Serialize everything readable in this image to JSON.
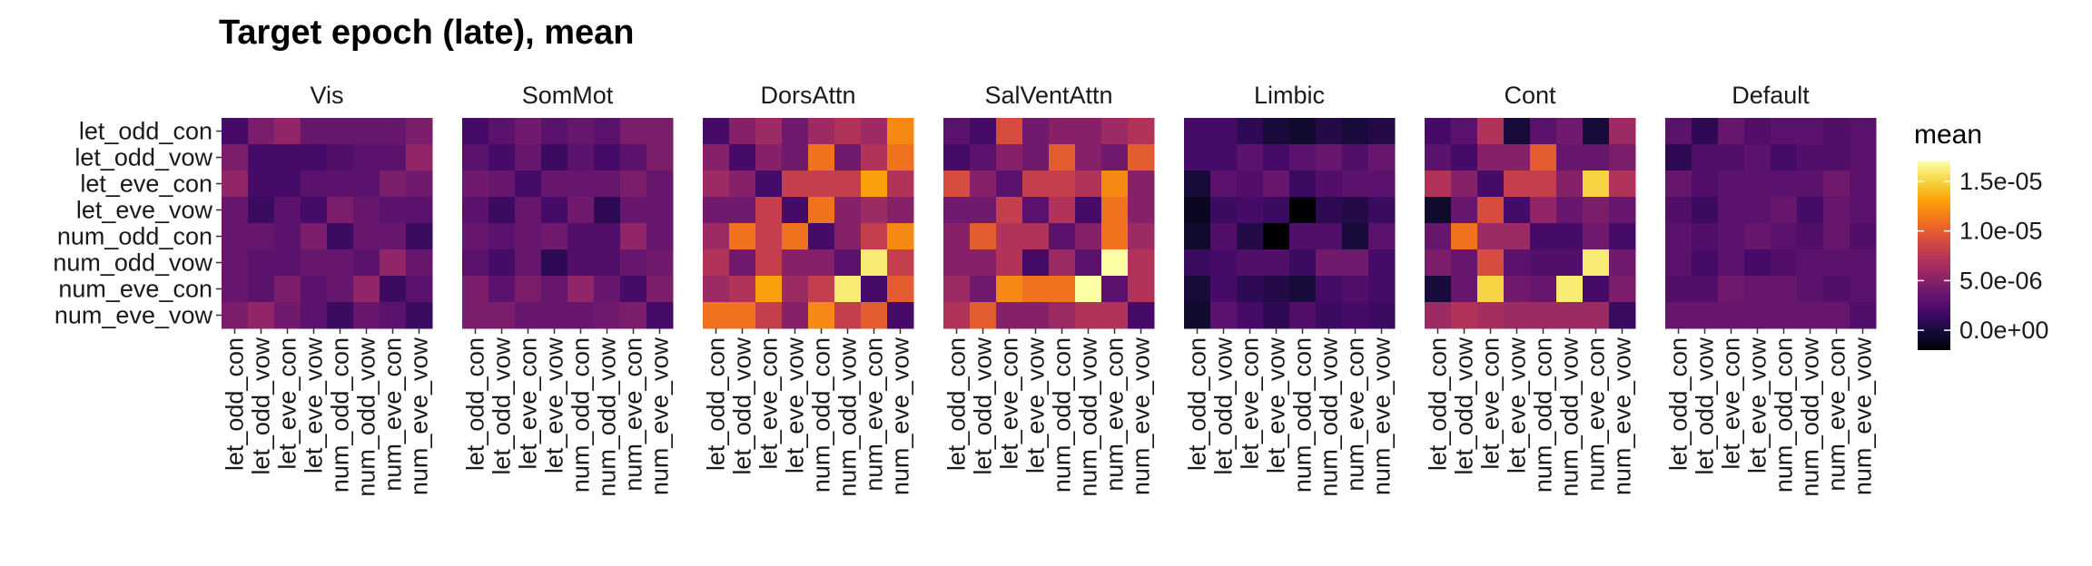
{
  "chart_data": {
    "type": "heatmap",
    "title": "Target epoch (late), mean",
    "categories": [
      "let_odd_con",
      "let_odd_vow",
      "let_eve_con",
      "let_eve_vow",
      "num_odd_con",
      "num_odd_vow",
      "num_eve_con",
      "num_eve_vow"
    ],
    "legend": {
      "title": "mean",
      "ticks": [
        {
          "label": "1.5e-05",
          "value": 1.5e-05
        },
        {
          "label": "1.0e-05",
          "value": 1e-05
        },
        {
          "label": "5.0e-06",
          "value": 5e-06
        },
        {
          "label": "0.0e+00",
          "value": 0.0
        }
      ],
      "range": [
        -2e-06,
        1.7e-05
      ],
      "colormap": "inferno",
      "placement": "right"
    },
    "panels": [
      {
        "name": "Vis",
        "values": [
          [
            2e-06,
            4.5e-06,
            5.5e-06,
            3.5e-06,
            3.5e-06,
            3.5e-06,
            3.5e-06,
            4.5e-06
          ],
          [
            4.5e-06,
            2e-06,
            2e-06,
            2e-06,
            2.5e-06,
            3e-06,
            3e-06,
            5.5e-06
          ],
          [
            5.5e-06,
            2e-06,
            2e-06,
            3e-06,
            3e-06,
            3e-06,
            4.5e-06,
            4e-06
          ],
          [
            3.5e-06,
            1.5e-06,
            3e-06,
            2e-06,
            4.5e-06,
            3.5e-06,
            3e-06,
            3e-06
          ],
          [
            3.5e-06,
            3.5e-06,
            3e-06,
            4.5e-06,
            1.5e-06,
            3.5e-06,
            3.5e-06,
            1.5e-06
          ],
          [
            3.5e-06,
            3e-06,
            3e-06,
            3.5e-06,
            3.5e-06,
            3e-06,
            5.5e-06,
            3.5e-06
          ],
          [
            3.5e-06,
            3e-06,
            4.5e-06,
            3e-06,
            3.5e-06,
            5.5e-06,
            1.5e-06,
            3e-06
          ],
          [
            4.5e-06,
            5.5e-06,
            4e-06,
            3e-06,
            1.5e-06,
            3.5e-06,
            3e-06,
            1.5e-06
          ]
        ]
      },
      {
        "name": "SomMot",
        "values": [
          [
            2e-06,
            3e-06,
            4e-06,
            3e-06,
            3.5e-06,
            3e-06,
            4.5e-06,
            4.5e-06
          ],
          [
            3e-06,
            2e-06,
            3.5e-06,
            1.5e-06,
            3e-06,
            2e-06,
            3e-06,
            4.5e-06
          ],
          [
            4e-06,
            3.5e-06,
            2e-06,
            3.5e-06,
            3.5e-06,
            3.5e-06,
            4.5e-06,
            3.5e-06
          ],
          [
            3e-06,
            1.5e-06,
            3.5e-06,
            2e-06,
            4e-06,
            1e-06,
            3.5e-06,
            3.5e-06
          ],
          [
            3.5e-06,
            3e-06,
            3.5e-06,
            4e-06,
            2.5e-06,
            2.5e-06,
            5.5e-06,
            3.5e-06
          ],
          [
            3e-06,
            2e-06,
            3.5e-06,
            1e-06,
            2.5e-06,
            2.5e-06,
            3.5e-06,
            4e-06
          ],
          [
            4.5e-06,
            3e-06,
            4.5e-06,
            3.5e-06,
            5.5e-06,
            3.5e-06,
            2e-06,
            4.5e-06
          ],
          [
            4.5e-06,
            4.5e-06,
            3.5e-06,
            3.5e-06,
            3.5e-06,
            4e-06,
            4.5e-06,
            2e-06
          ]
        ]
      },
      {
        "name": "DorsAttn",
        "values": [
          [
            2e-06,
            5e-06,
            6e-06,
            4e-06,
            6e-06,
            7e-06,
            6e-06,
            1.2e-05
          ],
          [
            5e-06,
            2e-06,
            5e-06,
            4e-06,
            1.1e-05,
            4e-06,
            7e-06,
            1.1e-05
          ],
          [
            6e-06,
            5e-06,
            2e-06,
            8e-06,
            8e-06,
            8e-06,
            1.3e-05,
            7e-06
          ],
          [
            4e-06,
            4e-06,
            8e-06,
            2e-06,
            1.1e-05,
            5e-06,
            6e-06,
            5e-06
          ],
          [
            6e-06,
            1.1e-05,
            8e-06,
            1.1e-05,
            2e-06,
            5e-06,
            8e-06,
            1.2e-05
          ],
          [
            7e-06,
            4e-06,
            8e-06,
            5e-06,
            5e-06,
            3e-06,
            1.6e-05,
            8e-06
          ],
          [
            6e-06,
            7e-06,
            1.3e-05,
            6e-06,
            8e-06,
            1.6e-05,
            2e-06,
            1e-05
          ],
          [
            1.1e-05,
            1.1e-05,
            8e-06,
            5e-06,
            1.2e-05,
            8e-06,
            1e-05,
            2e-06
          ]
        ]
      },
      {
        "name": "SalVentAttn",
        "values": [
          [
            3e-06,
            2e-06,
            9e-06,
            4e-06,
            5e-06,
            5e-06,
            6e-06,
            7e-06
          ],
          [
            2e-06,
            3e-06,
            5e-06,
            4e-06,
            1e-05,
            5e-06,
            4e-06,
            1e-05
          ],
          [
            9e-06,
            5e-06,
            3e-06,
            8e-06,
            8e-06,
            7e-06,
            1.2e-05,
            5e-06
          ],
          [
            4e-06,
            4e-06,
            8e-06,
            3e-06,
            7e-06,
            2e-06,
            1.1e-05,
            5e-06
          ],
          [
            5e-06,
            1e-05,
            7e-06,
            7e-06,
            3e-06,
            5e-06,
            1.1e-05,
            6e-06
          ],
          [
            5e-06,
            5e-06,
            7e-06,
            2e-06,
            6e-06,
            3e-06,
            1.7e-05,
            7e-06
          ],
          [
            6e-06,
            4e-06,
            1.2e-05,
            1.1e-05,
            1.1e-05,
            1.7e-05,
            3e-06,
            7e-06
          ],
          [
            7e-06,
            1e-05,
            5e-06,
            5e-06,
            6e-06,
            7e-06,
            7e-06,
            2e-06
          ]
        ]
      },
      {
        "name": "Limbic",
        "values": [
          [
            2e-06,
            2e-06,
            1e-06,
            0.0,
            -5e-07,
            5e-07,
            0.0,
            5e-07
          ],
          [
            2e-06,
            2e-06,
            3e-06,
            2e-06,
            3e-06,
            3.5e-06,
            2.5e-06,
            3.5e-06
          ],
          [
            0.0,
            3e-06,
            2.5e-06,
            3.5e-06,
            1.5e-06,
            2.5e-06,
            3e-06,
            3e-06
          ],
          [
            -1e-06,
            1.5e-06,
            2e-06,
            1.5e-06,
            -2e-06,
            1e-06,
            5e-07,
            1.5e-06
          ],
          [
            -5e-07,
            2.5e-06,
            5e-07,
            -2e-06,
            2.5e-06,
            2.5e-06,
            0.0,
            3e-06
          ],
          [
            1.5e-06,
            2e-06,
            2.5e-06,
            2.5e-06,
            1.5e-06,
            4e-06,
            4e-06,
            2e-06
          ],
          [
            0.0,
            2e-06,
            1e-06,
            5e-07,
            0.0,
            2e-06,
            2.5e-06,
            2e-06
          ],
          [
            -5e-07,
            3e-06,
            2e-06,
            1e-06,
            2.5e-06,
            1.5e-06,
            2e-06,
            1.5e-06
          ]
        ]
      },
      {
        "name": "Cont",
        "values": [
          [
            2e-06,
            3e-06,
            7e-06,
            0.0,
            3e-06,
            4e-06,
            0.0,
            6e-06
          ],
          [
            3e-06,
            2e-06,
            5e-06,
            5e-06,
            1e-05,
            3.5e-06,
            3.5e-06,
            4.5e-06
          ],
          [
            7e-06,
            5e-06,
            2e-06,
            8e-06,
            8e-06,
            5e-06,
            1.5e-05,
            7e-06
          ],
          [
            -5e-07,
            3.5e-06,
            9e-06,
            2e-06,
            5.5e-06,
            3.5e-06,
            4.5e-06,
            3.5e-06
          ],
          [
            3.5e-06,
            1.1e-05,
            6e-06,
            6e-06,
            2e-06,
            2e-06,
            4e-06,
            2e-06
          ],
          [
            4.5e-06,
            3.5e-06,
            9e-06,
            3e-06,
            2.5e-06,
            2.5e-06,
            1.6e-05,
            4e-06
          ],
          [
            0.0,
            3.5e-06,
            1.5e-05,
            4e-06,
            3.5e-06,
            1.6e-05,
            2e-06,
            4.5e-06
          ],
          [
            6e-06,
            7e-06,
            6.5e-06,
            6e-06,
            6e-06,
            6e-06,
            6e-06,
            1.5e-06
          ]
        ]
      },
      {
        "name": "Default",
        "values": [
          [
            3e-06,
            1e-06,
            3.5e-06,
            2.5e-06,
            3e-06,
            3e-06,
            2.5e-06,
            3e-06
          ],
          [
            1e-06,
            2.5e-06,
            2.5e-06,
            3e-06,
            2e-06,
            2.5e-06,
            2.5e-06,
            3e-06
          ],
          [
            3.5e-06,
            2.5e-06,
            3e-06,
            3e-06,
            3e-06,
            3e-06,
            4e-06,
            3e-06
          ],
          [
            2.5e-06,
            1.5e-06,
            3e-06,
            3e-06,
            3.5e-06,
            2e-06,
            3.5e-06,
            3e-06
          ],
          [
            3e-06,
            2.5e-06,
            3e-06,
            3.5e-06,
            3e-06,
            2.5e-06,
            3.5e-06,
            2.5e-06
          ],
          [
            3e-06,
            2e-06,
            3e-06,
            2e-06,
            2.5e-06,
            3e-06,
            3e-06,
            3e-06
          ],
          [
            2.5e-06,
            2.5e-06,
            4e-06,
            3.5e-06,
            3.5e-06,
            3e-06,
            2.5e-06,
            3e-06
          ],
          [
            3.5e-06,
            3.5e-06,
            3.5e-06,
            3.5e-06,
            3.5e-06,
            3.5e-06,
            3.5e-06,
            2.5e-06
          ]
        ]
      }
    ]
  }
}
